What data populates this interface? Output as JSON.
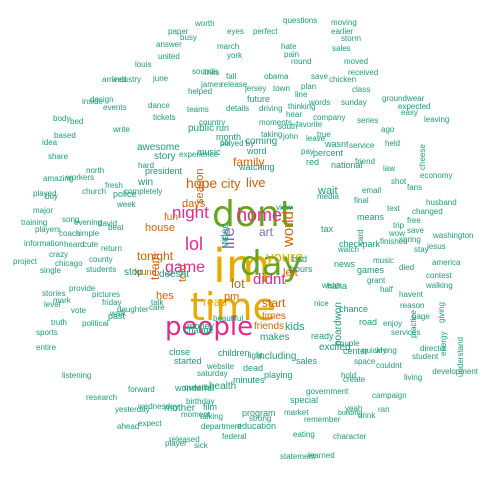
{
  "palette": {
    "teal": "#1b9e77",
    "orange": "#d95f02",
    "purple": "#7570b3",
    "magenta": "#e7298a",
    "green": "#66a61e",
    "gold": "#e6ab02",
    "brown": "#a6761d",
    "grey": "#666666"
  },
  "words": [
    {
      "t": "im",
      "c": "gold"
    },
    {
      "t": "time",
      "c": "gold"
    },
    {
      "t": "dont",
      "c": "green"
    },
    {
      "t": "day",
      "c": "green"
    },
    {
      "t": "people",
      "c": "magenta"
    },
    {
      "t": "home",
      "c": "magenta"
    },
    {
      "t": "night",
      "c": "magenta"
    },
    {
      "t": "lol",
      "c": "magenta"
    },
    {
      "t": "game",
      "c": "magenta"
    },
    {
      "t": "life",
      "c": "purple"
    },
    {
      "t": "youre",
      "c": "gold"
    },
    {
      "t": "didnt",
      "c": "magenta"
    },
    {
      "t": "city",
      "c": "orange"
    },
    {
      "t": "live",
      "c": "orange"
    },
    {
      "t": "world",
      "c": "orange"
    },
    {
      "t": "hope",
      "c": "orange"
    },
    {
      "t": "family",
      "c": "orange"
    },
    {
      "t": "season",
      "c": "orange"
    },
    {
      "t": "lot",
      "c": "brown"
    },
    {
      "t": "tonight",
      "c": "orange"
    },
    {
      "t": "start",
      "c": "orange"
    },
    {
      "t": "art",
      "c": "purple"
    },
    {
      "t": "team",
      "c": "orange"
    },
    {
      "t": "house",
      "c": "orange"
    },
    {
      "t": "days",
      "c": "orange"
    },
    {
      "t": "read",
      "c": "gold"
    },
    {
      "t": "left",
      "c": "orange"
    },
    {
      "t": "pm",
      "c": "orange"
    },
    {
      "t": "friends",
      "c": "orange"
    },
    {
      "t": "hes",
      "c": "orange"
    },
    {
      "t": "times",
      "c": "orange"
    },
    {
      "t": "wait",
      "c": "teal"
    },
    {
      "t": "video",
      "c": "teal"
    },
    {
      "t": "told",
      "c": "orange"
    },
    {
      "t": "found",
      "c": "orange"
    },
    {
      "t": "fun",
      "c": "orange"
    },
    {
      "t": "stop",
      "c": "teal"
    },
    {
      "t": "story",
      "c": "teal"
    },
    {
      "t": "public",
      "c": "teal"
    },
    {
      "t": "coming",
      "c": "teal"
    },
    {
      "t": "kids",
      "c": "teal"
    },
    {
      "t": "makes",
      "c": "teal"
    },
    {
      "t": "money",
      "c": "teal"
    },
    {
      "t": "including",
      "c": "teal"
    },
    {
      "t": "win",
      "c": "teal"
    },
    {
      "t": "run",
      "c": "teal"
    },
    {
      "t": "red",
      "c": "teal"
    },
    {
      "t": "month",
      "c": "teal"
    },
    {
      "t": "music",
      "c": "teal"
    },
    {
      "t": "word",
      "c": "teal"
    },
    {
      "t": "awesome",
      "c": "teal"
    },
    {
      "t": "doesnt",
      "c": "teal"
    },
    {
      "t": "students",
      "c": "teal"
    },
    {
      "t": "car",
      "c": "teal"
    },
    {
      "t": "bad",
      "c": "teal"
    },
    {
      "t": "hours",
      "c": "teal"
    },
    {
      "t": "ready",
      "c": "teal"
    },
    {
      "t": "excited",
      "c": "teal"
    },
    {
      "t": "haha",
      "c": "teal"
    },
    {
      "t": "chance",
      "c": "teal"
    },
    {
      "t": "water",
      "c": "teal"
    },
    {
      "t": "road",
      "c": "teal"
    },
    {
      "t": "enjoy",
      "c": "teal"
    },
    {
      "t": "couple",
      "c": "teal"
    },
    {
      "t": "games",
      "c": "teal"
    },
    {
      "t": "nice",
      "c": "teal"
    },
    {
      "t": "news",
      "c": "teal"
    },
    {
      "t": "watching",
      "c": "teal"
    },
    {
      "t": "percent",
      "c": "teal"
    },
    {
      "t": "president",
      "c": "teal"
    },
    {
      "t": "police",
      "c": "teal"
    },
    {
      "t": "week",
      "c": "teal"
    },
    {
      "t": "friday",
      "c": "teal"
    },
    {
      "t": "county",
      "c": "teal"
    },
    {
      "t": "close",
      "c": "teal"
    },
    {
      "t": "children",
      "c": "teal"
    },
    {
      "t": "change",
      "c": "teal"
    },
    {
      "t": "started",
      "c": "teal"
    },
    {
      "t": "beautiful",
      "c": "teal"
    },
    {
      "t": "care",
      "c": "teal"
    },
    {
      "t": "past",
      "c": "teal"
    },
    {
      "t": "sales",
      "c": "teal"
    },
    {
      "t": "center",
      "c": "teal"
    },
    {
      "t": "boardwon",
      "c": "teal"
    },
    {
      "t": "dead",
      "c": "teal"
    },
    {
      "t": "playing",
      "c": "teal"
    },
    {
      "t": "government",
      "c": "teal"
    },
    {
      "t": "special",
      "c": "teal"
    },
    {
      "t": "mother",
      "c": "teal"
    },
    {
      "t": "health",
      "c": "teal"
    },
    {
      "t": "saturday",
      "c": "teal"
    },
    {
      "t": "minutes",
      "c": "teal"
    },
    {
      "t": "forward",
      "c": "teal"
    },
    {
      "t": "birthday",
      "c": "teal"
    },
    {
      "t": "program",
      "c": "teal"
    },
    {
      "t": "market",
      "c": "teal"
    },
    {
      "t": "wednesday",
      "c": "teal"
    },
    {
      "t": "wonderful",
      "c": "teal"
    },
    {
      "t": "moment",
      "c": "teal"
    },
    {
      "t": "question",
      "c": "teal"
    },
    {
      "t": "film",
      "c": "teal"
    },
    {
      "t": "talking",
      "c": "teal"
    },
    {
      "t": "department",
      "c": "teal"
    },
    {
      "t": "education",
      "c": "teal"
    },
    {
      "t": "strong",
      "c": "teal"
    },
    {
      "t": "yesterday",
      "c": "teal"
    },
    {
      "t": "future",
      "c": "teal"
    },
    {
      "t": "country",
      "c": "teal"
    },
    {
      "t": "company",
      "c": "teal"
    },
    {
      "t": "moments",
      "c": "teal"
    },
    {
      "t": "taking",
      "c": "teal"
    },
    {
      "t": "john",
      "c": "teal"
    },
    {
      "t": "south",
      "c": "teal"
    },
    {
      "t": "true",
      "c": "teal"
    },
    {
      "t": "pay",
      "c": "teal"
    },
    {
      "t": "wasnt",
      "c": "teal"
    },
    {
      "t": "leave",
      "c": "teal"
    },
    {
      "t": "national",
      "c": "teal"
    },
    {
      "t": "friend",
      "c": "teal"
    },
    {
      "t": "series",
      "c": "teal"
    },
    {
      "t": "means",
      "c": "teal"
    },
    {
      "t": "tax",
      "c": "teal"
    },
    {
      "t": "checkpark",
      "c": "teal"
    },
    {
      "t": "watch",
      "c": "teal"
    },
    {
      "t": "service",
      "c": "teal"
    },
    {
      "t": "ago",
      "c": "teal"
    },
    {
      "t": "held",
      "c": "teal"
    },
    {
      "t": "text",
      "c": "teal"
    },
    {
      "t": "save",
      "c": "teal"
    },
    {
      "t": "trip",
      "c": "teal"
    },
    {
      "t": "spring",
      "c": "teal"
    },
    {
      "t": "free",
      "c": "teal"
    },
    {
      "t": "shot",
      "c": "teal"
    },
    {
      "t": "fans",
      "c": "teal"
    },
    {
      "t": "finished",
      "c": "teal"
    },
    {
      "t": "wow",
      "c": "teal"
    },
    {
      "t": "grant",
      "c": "teal"
    },
    {
      "t": "died",
      "c": "teal"
    },
    {
      "t": "page",
      "c": "teal"
    },
    {
      "t": "card",
      "c": "teal"
    },
    {
      "t": "half",
      "c": "teal"
    },
    {
      "t": "havent",
      "c": "teal"
    },
    {
      "t": "reason",
      "c": "teal"
    },
    {
      "t": "services",
      "c": "teal"
    },
    {
      "t": "wrong",
      "c": "teal"
    },
    {
      "t": "quickly",
      "c": "teal"
    },
    {
      "t": "space",
      "c": "teal"
    },
    {
      "t": "create",
      "c": "teal"
    },
    {
      "t": "campaign",
      "c": "teal"
    },
    {
      "t": "drink",
      "c": "teal"
    },
    {
      "t": "hold",
      "c": "teal"
    },
    {
      "t": "building",
      "c": "teal"
    },
    {
      "t": "living",
      "c": "teal"
    },
    {
      "t": "director",
      "c": "teal"
    },
    {
      "t": "ran",
      "c": "teal"
    },
    {
      "t": "giving",
      "c": "teal"
    },
    {
      "t": "student",
      "c": "teal"
    },
    {
      "t": "character",
      "c": "teal"
    },
    {
      "t": "learned",
      "c": "teal"
    },
    {
      "t": "statement",
      "c": "teal"
    },
    {
      "t": "eating",
      "c": "teal"
    },
    {
      "t": "released",
      "c": "teal"
    },
    {
      "t": "federal",
      "c": "teal"
    },
    {
      "t": "player",
      "c": "teal"
    },
    {
      "t": "sick",
      "c": "teal"
    },
    {
      "t": "expect",
      "c": "teal"
    },
    {
      "t": "ahead",
      "c": "teal"
    },
    {
      "t": "research",
      "c": "teal"
    },
    {
      "t": "listening",
      "c": "teal"
    },
    {
      "t": "entire",
      "c": "teal"
    },
    {
      "t": "truth",
      "c": "teal"
    },
    {
      "t": "sports",
      "c": "teal"
    },
    {
      "t": "political",
      "c": "teal"
    },
    {
      "t": "daughter",
      "c": "teal"
    },
    {
      "t": "vote",
      "c": "teal"
    },
    {
      "t": "provide",
      "c": "teal"
    },
    {
      "t": "pictures",
      "c": "teal"
    },
    {
      "t": "stories",
      "c": "teal"
    },
    {
      "t": "single",
      "c": "teal"
    },
    {
      "t": "level",
      "c": "teal"
    },
    {
      "t": "mark",
      "c": "teal"
    },
    {
      "t": "project",
      "c": "teal"
    },
    {
      "t": "crazy",
      "c": "teal"
    },
    {
      "t": "heard",
      "c": "teal"
    },
    {
      "t": "chicago",
      "c": "teal"
    },
    {
      "t": "cute",
      "c": "teal"
    },
    {
      "t": "return",
      "c": "teal"
    },
    {
      "t": "coach",
      "c": "teal"
    },
    {
      "t": "simple",
      "c": "teal"
    },
    {
      "t": "major",
      "c": "teal"
    },
    {
      "t": "song",
      "c": "teal"
    },
    {
      "t": "training",
      "c": "teal"
    },
    {
      "t": "players",
      "c": "teal"
    },
    {
      "t": "information",
      "c": "teal"
    },
    {
      "t": "played",
      "c": "teal"
    },
    {
      "t": "buy",
      "c": "teal"
    },
    {
      "t": "amazing",
      "c": "teal"
    },
    {
      "t": "share",
      "c": "teal"
    },
    {
      "t": "idea",
      "c": "teal"
    },
    {
      "t": "based",
      "c": "teal"
    },
    {
      "t": "body",
      "c": "teal"
    },
    {
      "t": "bed",
      "c": "teal"
    },
    {
      "t": "arrived",
      "c": "teal"
    },
    {
      "t": "design",
      "c": "teal"
    },
    {
      "t": "events",
      "c": "teal"
    },
    {
      "t": "industry",
      "c": "teal"
    },
    {
      "t": "june",
      "c": "teal"
    },
    {
      "t": "sounds",
      "c": "teal"
    },
    {
      "t": "lines",
      "c": "teal"
    },
    {
      "t": "james",
      "c": "teal"
    },
    {
      "t": "jersey",
      "c": "teal"
    },
    {
      "t": "town",
      "c": "teal"
    },
    {
      "t": "hate",
      "c": "teal"
    },
    {
      "t": "answer",
      "c": "teal"
    },
    {
      "t": "united",
      "c": "teal"
    },
    {
      "t": "louis",
      "c": "teal"
    },
    {
      "t": "busy",
      "c": "teal"
    },
    {
      "t": "eyes",
      "c": "teal"
    },
    {
      "t": "march",
      "c": "teal"
    },
    {
      "t": "perfect",
      "c": "teal"
    },
    {
      "t": "york",
      "c": "teal"
    },
    {
      "t": "worth",
      "c": "teal"
    },
    {
      "t": "paper",
      "c": "teal"
    },
    {
      "t": "questions",
      "c": "teal"
    },
    {
      "t": "moving",
      "c": "teal"
    },
    {
      "t": "earlier",
      "c": "teal"
    },
    {
      "t": "sales",
      "c": "teal"
    },
    {
      "t": "storm",
      "c": "teal"
    },
    {
      "t": "round",
      "c": "teal"
    },
    {
      "t": "pain",
      "c": "teal"
    },
    {
      "t": "moved",
      "c": "teal"
    },
    {
      "t": "received",
      "c": "teal"
    },
    {
      "t": "chicken",
      "c": "teal"
    },
    {
      "t": "save",
      "c": "teal"
    },
    {
      "t": "expected",
      "c": "teal"
    },
    {
      "t": "groundwear",
      "c": "teal"
    },
    {
      "t": "leaving",
      "c": "teal"
    },
    {
      "t": "economy",
      "c": "teal"
    },
    {
      "t": "cheese",
      "c": "teal"
    },
    {
      "t": "husband",
      "c": "teal"
    },
    {
      "t": "changed",
      "c": "teal"
    },
    {
      "t": "washington",
      "c": "teal"
    },
    {
      "t": "jesus",
      "c": "teal"
    },
    {
      "t": "contest",
      "c": "teal"
    },
    {
      "t": "america",
      "c": "teal"
    },
    {
      "t": "walking",
      "c": "teal"
    },
    {
      "t": "practice",
      "c": "teal"
    },
    {
      "t": "understand",
      "c": "teal"
    },
    {
      "t": "energy",
      "c": "teal"
    },
    {
      "t": "development",
      "c": "teal"
    },
    {
      "t": "couldnt",
      "c": "teal"
    },
    {
      "t": "dance",
      "c": "teal"
    },
    {
      "t": "tickets",
      "c": "teal"
    },
    {
      "t": "helped",
      "c": "teal"
    },
    {
      "t": "teams",
      "c": "teal"
    },
    {
      "t": "details",
      "c": "teal"
    },
    {
      "t": "driving",
      "c": "teal"
    },
    {
      "t": "write",
      "c": "teal"
    },
    {
      "t": "north",
      "c": "teal"
    },
    {
      "t": "fresh",
      "c": "teal"
    },
    {
      "t": "david",
      "c": "teal"
    },
    {
      "t": "beat",
      "c": "teal"
    },
    {
      "t": "workers",
      "c": "teal"
    },
    {
      "t": "church",
      "c": "teal"
    },
    {
      "t": "completely",
      "c": "teal"
    },
    {
      "t": "evening",
      "c": "teal"
    },
    {
      "t": "release",
      "c": "teal"
    },
    {
      "t": "fall",
      "c": "teal"
    },
    {
      "t": "obama",
      "c": "teal"
    },
    {
      "t": "thinking",
      "c": "teal"
    },
    {
      "t": "plan",
      "c": "teal"
    },
    {
      "t": "line",
      "c": "teal"
    },
    {
      "t": "favorite",
      "c": "teal"
    },
    {
      "t": "hear",
      "c": "teal"
    },
    {
      "t": "words",
      "c": "teal"
    },
    {
      "t": "sunday",
      "c": "teal"
    },
    {
      "t": "email",
      "c": "teal"
    },
    {
      "t": "law",
      "c": "teal"
    },
    {
      "t": "final",
      "c": "teal"
    },
    {
      "t": "class",
      "c": "teal"
    },
    {
      "t": "played by",
      "c": "teal"
    },
    {
      "t": "media",
      "c": "teal"
    },
    {
      "t": "stay",
      "c": "teal"
    },
    {
      "t": "talk",
      "c": "teal"
    },
    {
      "t": "light",
      "c": "teal"
    },
    {
      "t": "yeah",
      "c": "teal"
    },
    {
      "t": "inside",
      "c": "teal"
    },
    {
      "t": "experience",
      "c": "teal"
    },
    {
      "t": "view",
      "c": "teal"
    },
    {
      "t": "music",
      "c": "teal"
    },
    {
      "t": "walk",
      "c": "teal"
    },
    {
      "t": "website",
      "c": "teal"
    },
    {
      "t": "remember",
      "c": "teal"
    },
    {
      "t": "easy",
      "c": "teal"
    },
    {
      "t": "hard",
      "c": "teal"
    }
  ]
}
